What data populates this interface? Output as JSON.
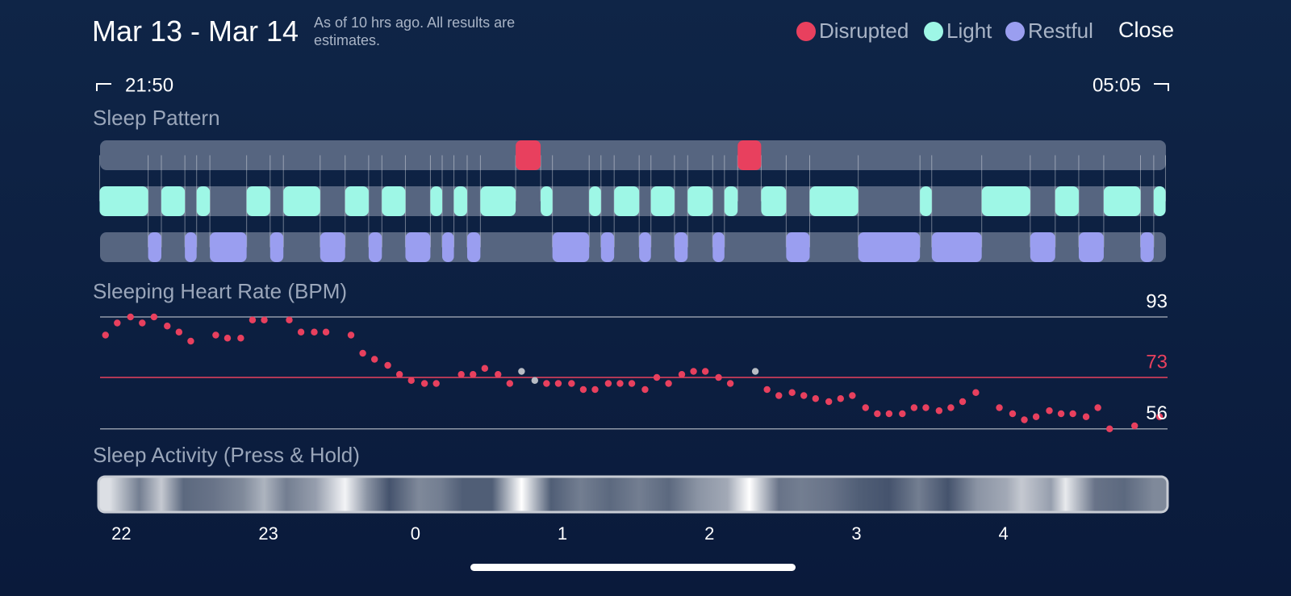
{
  "header": {
    "title": "Mar 13 - Mar 14",
    "subtitle": "As of 10 hrs ago. All results are estimates.",
    "close": "Close"
  },
  "chart_data": [
    {
      "type": "timeline",
      "title": "Sleep Pattern",
      "xlim": [
        21.833,
        29.083
      ],
      "xticks": [
        {
          "value": 21.833,
          "label": "21:50"
        },
        {
          "value": 29.083,
          "label": "05:05"
        }
      ],
      "series": [
        {
          "name": "Disrupted",
          "color": "#e8405e",
          "segments": [
            [
              24.66,
              24.83
            ],
            [
              26.17,
              26.33
            ]
          ]
        },
        {
          "name": "Light",
          "color": "#9ef7e6",
          "segments": [
            [
              21.83,
              22.16
            ],
            [
              22.25,
              22.41
            ],
            [
              22.49,
              22.58
            ],
            [
              22.83,
              22.99
            ],
            [
              23.08,
              23.33
            ],
            [
              23.5,
              23.66
            ],
            [
              23.75,
              23.91
            ],
            [
              24.08,
              24.16
            ],
            [
              24.24,
              24.33
            ],
            [
              24.42,
              24.66
            ],
            [
              24.83,
              24.91
            ],
            [
              25.16,
              25.24
            ],
            [
              25.33,
              25.5
            ],
            [
              25.58,
              25.74
            ],
            [
              25.83,
              26.0
            ],
            [
              26.08,
              26.17
            ],
            [
              26.33,
              26.5
            ],
            [
              26.66,
              26.99
            ],
            [
              27.41,
              27.49
            ],
            [
              27.83,
              28.16
            ],
            [
              28.33,
              28.49
            ],
            [
              28.66,
              28.91
            ],
            [
              29.0,
              29.08
            ]
          ]
        },
        {
          "name": "Restful",
          "color": "#9a9ef0",
          "segments": [
            [
              22.16,
              22.25
            ],
            [
              22.41,
              22.49
            ],
            [
              22.58,
              22.83
            ],
            [
              22.99,
              23.08
            ],
            [
              23.33,
              23.5
            ],
            [
              23.66,
              23.75
            ],
            [
              23.91,
              24.08
            ],
            [
              24.16,
              24.24
            ],
            [
              24.33,
              24.42
            ],
            [
              24.91,
              25.16
            ],
            [
              25.24,
              25.33
            ],
            [
              25.5,
              25.58
            ],
            [
              25.74,
              25.83
            ],
            [
              26.0,
              26.08
            ],
            [
              26.5,
              26.66
            ],
            [
              26.99,
              27.41
            ],
            [
              27.49,
              27.83
            ],
            [
              28.16,
              28.33
            ],
            [
              28.49,
              28.66
            ],
            [
              28.91,
              29.0
            ]
          ]
        }
      ]
    },
    {
      "type": "scatter",
      "title": "Sleeping Heart Rate (BPM)",
      "xlim": [
        21.833,
        29.083
      ],
      "ylim": [
        54,
        95
      ],
      "yticks": [
        56,
        93
      ],
      "average": 73,
      "average_color": "#e8405e",
      "series": [
        {
          "color": "#e8405e",
          "x": [
            21.87,
            21.95,
            22.04,
            22.12,
            22.2,
            22.29,
            22.37,
            22.45,
            22.62,
            22.7,
            22.79,
            22.87,
            22.95,
            23.12,
            23.2,
            23.29,
            23.37,
            23.54,
            23.62,
            23.7,
            23.79,
            23.87,
            23.95,
            24.04,
            24.12,
            24.29,
            24.37,
            24.45,
            24.54,
            24.62,
            24.87,
            24.95,
            25.04,
            25.12,
            25.2,
            25.29,
            25.37,
            25.45,
            25.54,
            25.62,
            25.7,
            25.79,
            25.87,
            25.95,
            26.04,
            26.12,
            26.37,
            26.45,
            26.54,
            26.62,
            26.7,
            26.79,
            26.87,
            26.95,
            27.04,
            27.12,
            27.2,
            27.29,
            27.37,
            27.45,
            27.54,
            27.62,
            27.7,
            27.79,
            27.95,
            28.04,
            28.12,
            28.2,
            28.29,
            28.37,
            28.45,
            28.54,
            28.62,
            28.7,
            28.87,
            29.04
          ],
          "values": [
            87,
            91,
            93,
            91,
            93,
            90,
            88,
            85,
            87,
            86,
            86,
            92,
            92,
            92,
            88,
            88,
            88,
            87,
            81,
            79,
            77,
            74,
            72,
            71,
            71,
            74,
            74,
            76,
            74,
            71,
            71,
            71,
            71,
            69,
            69,
            71,
            71,
            71,
            69,
            73,
            71,
            74,
            75,
            75,
            73,
            71,
            69,
            67,
            68,
            67,
            66,
            65,
            66,
            67,
            63,
            61,
            61,
            61,
            63,
            63,
            62,
            63,
            65,
            68,
            63,
            61,
            59,
            60,
            62,
            61,
            61,
            60,
            63,
            56,
            57,
            60
          ]
        },
        {
          "color": "#b8bcc4",
          "x": [
            24.7,
            24.79,
            26.29
          ],
          "values": [
            75,
            72,
            75
          ]
        }
      ]
    },
    {
      "type": "heatmap",
      "title": "Sleep Activity (Press & Hold)",
      "xlim": [
        21.833,
        29.083
      ],
      "xticks": [
        22,
        23,
        {
          "value": 24,
          "label": "0"
        },
        {
          "value": 25,
          "label": "1"
        },
        {
          "value": 26,
          "label": "2"
        },
        {
          "value": 27,
          "label": "3"
        },
        {
          "value": 28,
          "label": "4"
        }
      ],
      "x": [
        21.9,
        22.1,
        22.25,
        22.4,
        22.6,
        22.8,
        22.95,
        23.1,
        23.3,
        23.5,
        23.65,
        23.8,
        24.0,
        24.15,
        24.3,
        24.5,
        24.7,
        24.9,
        25.1,
        25.3,
        25.5,
        25.7,
        25.9,
        26.1,
        26.25,
        26.45,
        26.6,
        26.8,
        27.0,
        27.2,
        27.4,
        27.6,
        27.8,
        28.0,
        28.1,
        28.3,
        28.4,
        28.6,
        28.8,
        29.0
      ],
      "values": [
        0.85,
        0.4,
        0.75,
        0.3,
        0.35,
        0.45,
        0.65,
        0.4,
        0.55,
        0.95,
        0.5,
        0.2,
        0.45,
        0.4,
        0.25,
        0.25,
        1.0,
        0.25,
        0.4,
        0.3,
        0.4,
        0.3,
        0.5,
        0.6,
        1.0,
        0.35,
        0.4,
        0.35,
        0.25,
        0.2,
        0.4,
        0.2,
        0.5,
        0.6,
        0.75,
        0.55,
        0.9,
        0.35,
        0.3,
        0.45
      ]
    }
  ]
}
